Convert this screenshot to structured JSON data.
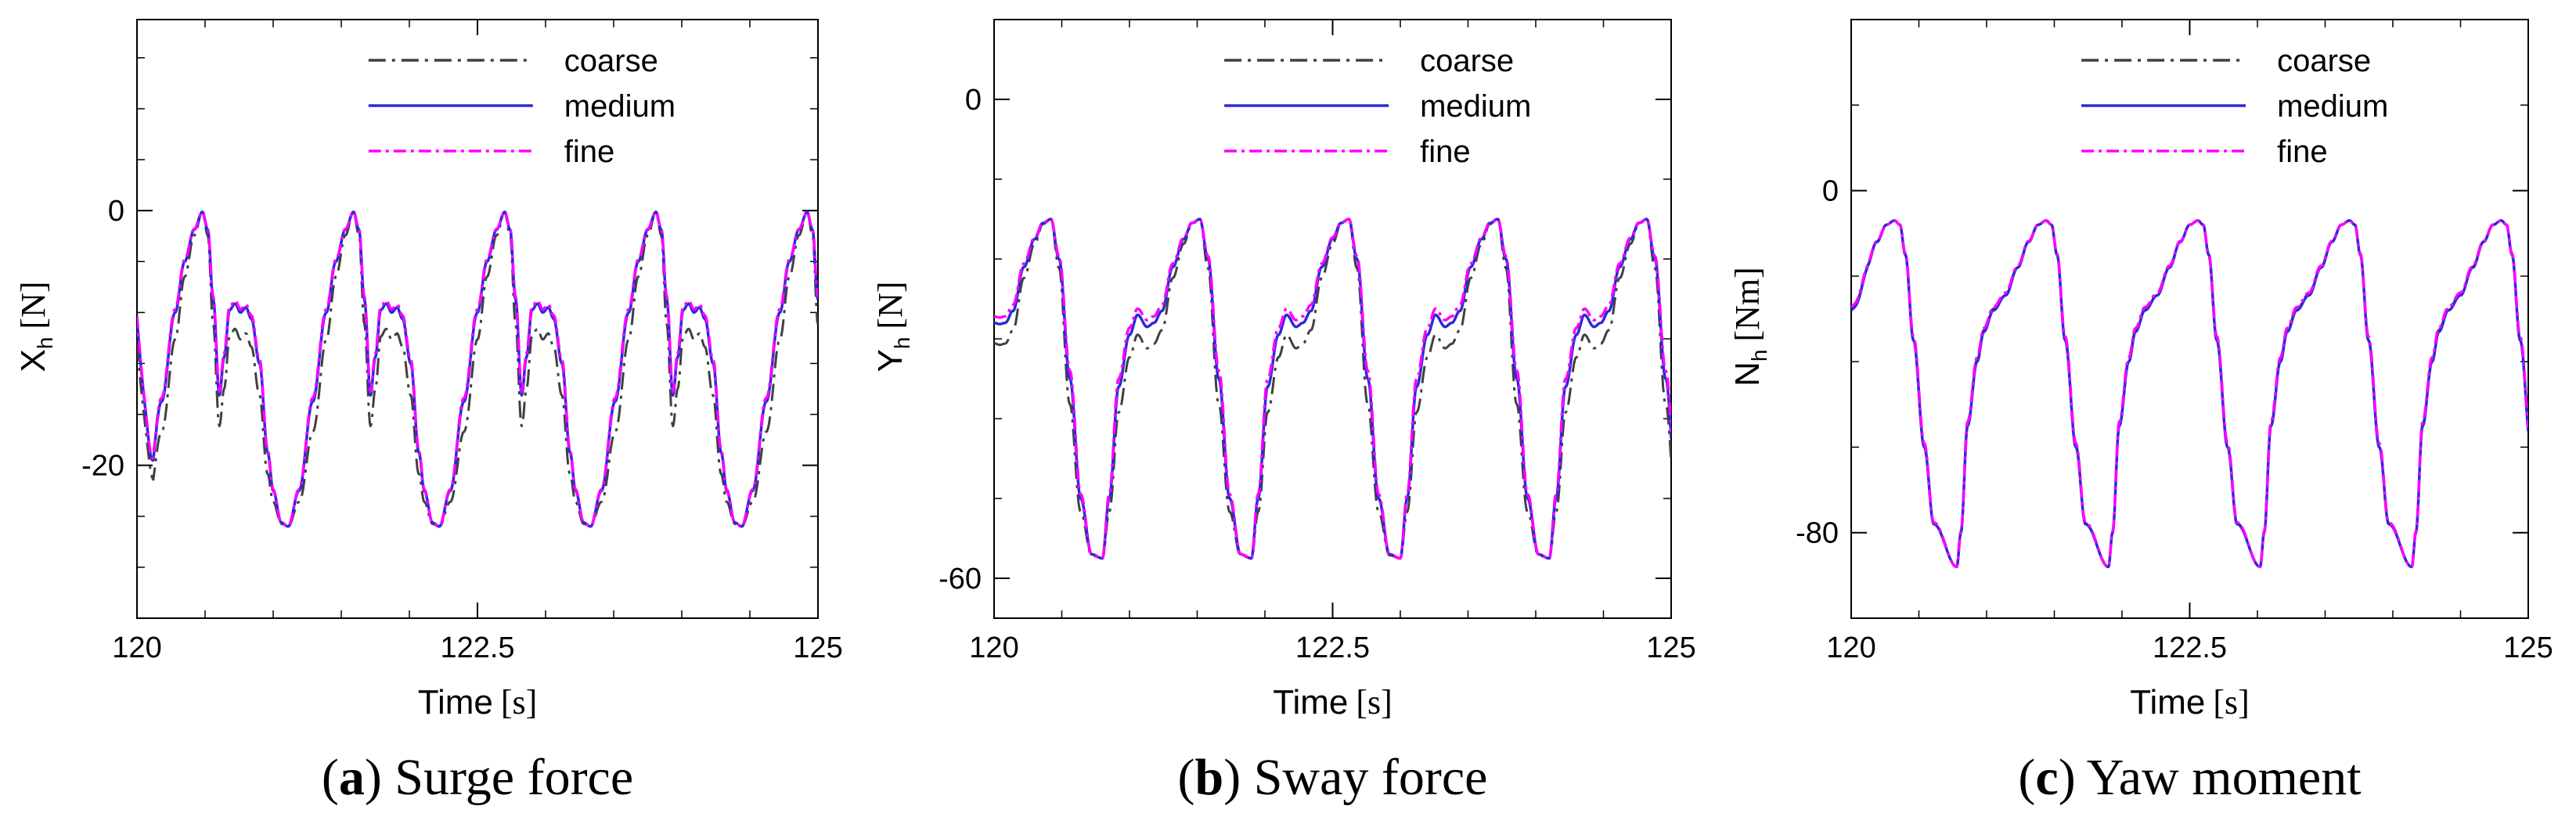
{
  "chart_data": [
    {
      "type": "line",
      "panel": "a",
      "caption_label": "a",
      "caption_text": "Surge force",
      "xlabel": "Time",
      "xunit": "[s]",
      "ylabel_main": "X",
      "ylabel_sub": "h",
      "yunit": "[N]",
      "xlim": [
        120,
        125
      ],
      "ylim": [
        -32,
        15
      ],
      "xticks": [
        120,
        122.5,
        125
      ],
      "xtick_labels": [
        "120",
        "122.5",
        "125"
      ],
      "xminor_step": 0.5,
      "yticks": [
        0,
        -20
      ],
      "ytick_labels": [
        "0",
        "-20"
      ],
      "yminor_step": 4,
      "profile": {
        "period": 1.11,
        "phase": 0.0,
        "points": [
          [
            0.0,
            -24.8
          ],
          [
            0.08,
            -22.0
          ],
          [
            0.18,
            -15.0
          ],
          [
            0.28,
            -8.0
          ],
          [
            0.35,
            -4.0
          ],
          [
            0.42,
            -1.5
          ],
          [
            0.48,
            -0.1
          ],
          [
            0.52,
            -1.5
          ],
          [
            0.56,
            -7.0
          ],
          [
            0.605,
            -14.5
          ],
          [
            0.64,
            -11.5
          ],
          [
            0.68,
            -7.8
          ],
          [
            0.72,
            -7.3
          ],
          [
            0.76,
            -8.0
          ],
          [
            0.8,
            -7.6
          ],
          [
            0.84,
            -8.5
          ],
          [
            0.9,
            -12.0
          ],
          [
            0.96,
            -19.0
          ],
          [
            1.0,
            -22.0
          ],
          [
            1.06,
            -24.5
          ],
          [
            1.11,
            -24.8
          ]
        ]
      },
      "start_value": -8.5,
      "series": [
        {
          "name": "coarse",
          "color": "#404040",
          "dash": "22,8,4,8",
          "offset": -2.5
        },
        {
          "name": "medium",
          "color": "#2b2bd6",
          "dash": "",
          "offset": 0
        },
        {
          "name": "fine",
          "color": "#ff00ff",
          "dash": "16,6,4,6",
          "offset": 0.3
        }
      ]
    },
    {
      "type": "line",
      "panel": "b",
      "caption_label": "b",
      "caption_text": "Sway force",
      "xlabel": "Time",
      "xunit": "[s]",
      "ylabel_main": "Y",
      "ylabel_sub": "h",
      "yunit": "[N]",
      "xlim": [
        120,
        125
      ],
      "ylim": [
        -65,
        10
      ],
      "xticks": [
        120,
        122.5,
        125
      ],
      "xtick_labels": [
        "120",
        "122.5",
        "125"
      ],
      "xminor_step": 0.5,
      "yticks": [
        0,
        -60
      ],
      "ytick_labels": [
        "0",
        "-60"
      ],
      "yminor_step": 10,
      "profile": {
        "period": 1.1,
        "phase": 0.8,
        "points": [
          [
            0.0,
            -57.5
          ],
          [
            0.05,
            -50.0
          ],
          [
            0.12,
            -36.0
          ],
          [
            0.2,
            -29.5
          ],
          [
            0.26,
            -27.0
          ],
          [
            0.33,
            -28.5
          ],
          [
            0.38,
            -28.0
          ],
          [
            0.44,
            -26.5
          ],
          [
            0.52,
            -21.0
          ],
          [
            0.6,
            -17.5
          ],
          [
            0.66,
            -15.5
          ],
          [
            0.72,
            -15.0
          ],
          [
            0.78,
            -20.0
          ],
          [
            0.86,
            -35.0
          ],
          [
            0.94,
            -50.0
          ],
          [
            1.02,
            -57.0
          ],
          [
            1.1,
            -57.5
          ]
        ]
      },
      "start_value": -28.0,
      "series": [
        {
          "name": "coarse",
          "color": "#404040",
          "dash": "22,8,4,8",
          "offset": -3.2
        },
        {
          "name": "medium",
          "color": "#2b2bd6",
          "dash": "",
          "offset": 0
        },
        {
          "name": "fine",
          "color": "#ff00ff",
          "dash": "16,6,4,6",
          "offset": 1.0
        }
      ]
    },
    {
      "type": "line",
      "panel": "c",
      "caption_label": "c",
      "caption_text": "Yaw moment",
      "xlabel": "Time",
      "xunit": "[s]",
      "ylabel_main": "N",
      "ylabel_sub": "h",
      "yunit": "[Nm]",
      "xlim": [
        120,
        125
      ],
      "ylim": [
        -100,
        40
      ],
      "xticks": [
        120,
        122.5,
        125
      ],
      "xtick_labels": [
        "120",
        "122.5",
        "125"
      ],
      "xminor_step": 0.5,
      "yticks": [
        0,
        -80
      ],
      "ytick_labels": [
        "0",
        "-80"
      ],
      "yminor_step": 20,
      "profile": {
        "period": 1.12,
        "phase": 0.78,
        "points": [
          [
            0.0,
            -88.0
          ],
          [
            0.03,
            -80.0
          ],
          [
            0.08,
            -55.0
          ],
          [
            0.15,
            -40.0
          ],
          [
            0.2,
            -33.0
          ],
          [
            0.27,
            -28.0
          ],
          [
            0.36,
            -24.5
          ],
          [
            0.45,
            -18.0
          ],
          [
            0.53,
            -12.0
          ],
          [
            0.6,
            -8.0
          ],
          [
            0.66,
            -7.0
          ],
          [
            0.7,
            -8.0
          ],
          [
            0.74,
            -15.0
          ],
          [
            0.8,
            -35.0
          ],
          [
            0.88,
            -60.0
          ],
          [
            0.95,
            -78.0
          ],
          [
            1.12,
            -88.0
          ]
        ]
      },
      "start_value": -28.0,
      "series": [
        {
          "name": "coarse",
          "color": "#404040",
          "dash": "22,8,4,8",
          "offset": 0.5
        },
        {
          "name": "medium",
          "color": "#2b2bd6",
          "dash": "",
          "offset": 0
        },
        {
          "name": "fine",
          "color": "#ff00ff",
          "dash": "16,6,4,6",
          "offset": 1.0
        }
      ]
    }
  ]
}
